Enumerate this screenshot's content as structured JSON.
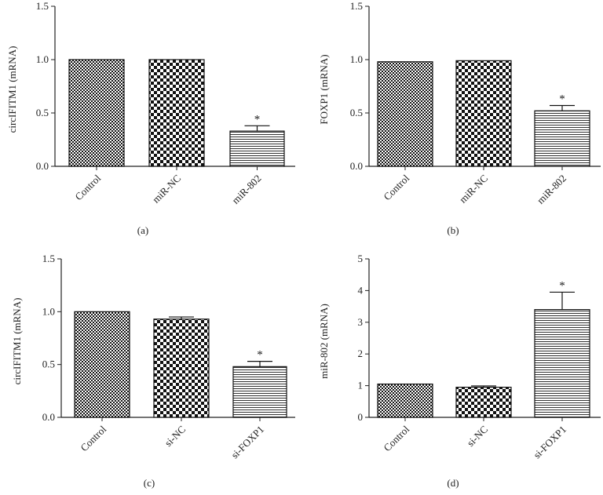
{
  "chart_data": [
    {
      "type": "bar",
      "panel_label": "(a)",
      "ylabel": "circIFITM1 (mRNA)",
      "ylim": [
        0,
        1.5
      ],
      "yticks": [
        "0.0",
        "0.5",
        "1.0",
        "1.5"
      ],
      "categories": [
        "Control",
        "miR-NC",
        "miR-802"
      ],
      "values": [
        1.0,
        1.0,
        0.33
      ],
      "errors": [
        0,
        0,
        0.05
      ],
      "significance": [
        "",
        "",
        "*"
      ],
      "patterns": [
        "checker-fine",
        "checker-coarse",
        "horizontal-lines"
      ]
    },
    {
      "type": "bar",
      "panel_label": "(b)",
      "ylabel": "FOXP1 (mRNA)",
      "ylim": [
        0,
        1.5
      ],
      "yticks": [
        "0.0",
        "0.5",
        "1.0",
        "1.5"
      ],
      "categories": [
        "Control",
        "miR-NC",
        "miR-802"
      ],
      "values": [
        0.98,
        0.99,
        0.52
      ],
      "errors": [
        0,
        0,
        0.05
      ],
      "significance": [
        "",
        "",
        "*"
      ],
      "patterns": [
        "checker-fine",
        "checker-coarse",
        "horizontal-lines"
      ]
    },
    {
      "type": "bar",
      "panel_label": "(c)",
      "ylabel": "circIFITM1 (mRNA)",
      "ylim": [
        0,
        1.5
      ],
      "yticks": [
        "0.0",
        "0.5",
        "1.0",
        "1.5"
      ],
      "categories": [
        "Control",
        "si-NC",
        "si-FOXP1"
      ],
      "values": [
        1.0,
        0.93,
        0.48
      ],
      "errors": [
        0,
        0.02,
        0.05
      ],
      "significance": [
        "",
        "",
        "*"
      ],
      "patterns": [
        "checker-fine",
        "checker-coarse",
        "horizontal-lines"
      ]
    },
    {
      "type": "bar",
      "panel_label": "(d)",
      "ylabel": "miR-802 (mRNA)",
      "ylim": [
        0,
        5
      ],
      "yticks": [
        "0",
        "1",
        "2",
        "3",
        "4",
        "5"
      ],
      "categories": [
        "Control",
        "si-NC",
        "si-FOXP1"
      ],
      "values": [
        1.05,
        0.95,
        3.4
      ],
      "errors": [
        0,
        0.04,
        0.55
      ],
      "significance": [
        "",
        "",
        "*"
      ],
      "patterns": [
        "checker-fine",
        "checker-coarse",
        "horizontal-lines"
      ]
    }
  ]
}
